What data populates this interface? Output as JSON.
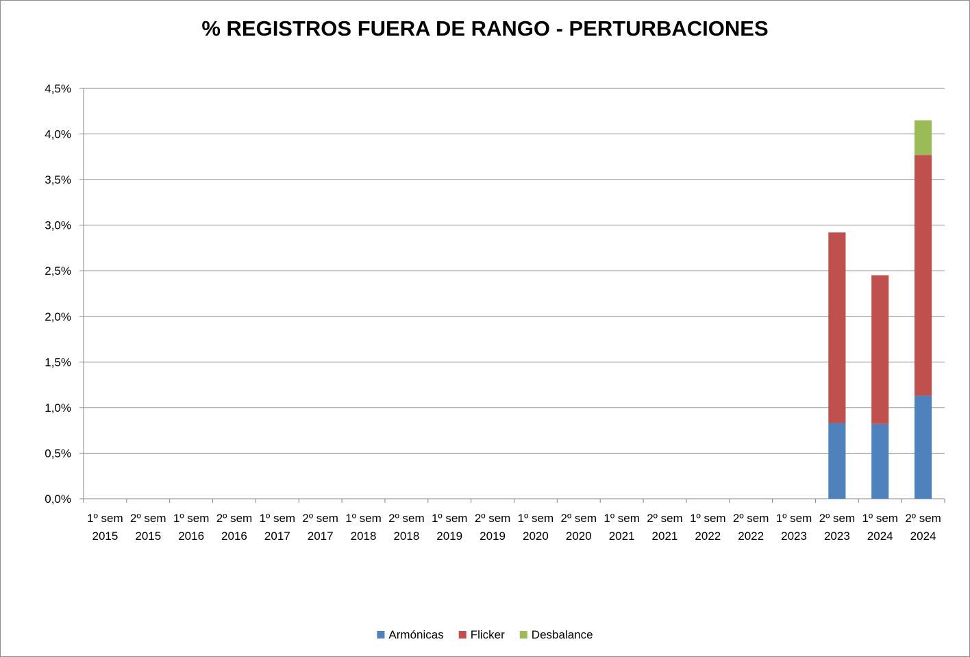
{
  "chart_data": {
    "type": "bar",
    "stacked": true,
    "title": "% REGISTROS FUERA DE RANGO - PERTURBACIONES",
    "xlabel": "",
    "ylabel": "",
    "ylim": [
      0,
      4.5
    ],
    "yticks": [
      "0,0%",
      "0,5%",
      "1,0%",
      "1,5%",
      "2,0%",
      "2,5%",
      "3,0%",
      "3,5%",
      "4,0%",
      "4,5%"
    ],
    "ytick_values": [
      0,
      0.5,
      1.0,
      1.5,
      2.0,
      2.5,
      3.0,
      3.5,
      4.0,
      4.5
    ],
    "grid": true,
    "legend_position": "bottom",
    "categories": [
      [
        "1º sem",
        "2015"
      ],
      [
        "2º sem",
        "2015"
      ],
      [
        "1º sem",
        "2016"
      ],
      [
        "2º sem",
        "2016"
      ],
      [
        "1º sem",
        "2017"
      ],
      [
        "2º sem",
        "2017"
      ],
      [
        "1º sem",
        "2018"
      ],
      [
        "2º sem",
        "2018"
      ],
      [
        "1º sem",
        "2019"
      ],
      [
        "2º sem",
        "2019"
      ],
      [
        "1º sem",
        "2020"
      ],
      [
        "2º sem",
        "2020"
      ],
      [
        "1º sem",
        "2021"
      ],
      [
        "2º sem",
        "2021"
      ],
      [
        "1º sem",
        "2022"
      ],
      [
        "2º sem",
        "2022"
      ],
      [
        "1º sem",
        "2023"
      ],
      [
        "2º sem",
        "2023"
      ],
      [
        "1º sem",
        "2024"
      ],
      [
        "2º sem",
        "2024"
      ]
    ],
    "series": [
      {
        "name": "Armónicas",
        "color": "#4f81bd",
        "values": [
          0,
          0,
          0,
          0,
          0,
          0,
          0,
          0,
          0,
          0,
          0,
          0,
          0,
          0,
          0,
          0,
          0,
          0.83,
          0.82,
          1.13
        ]
      },
      {
        "name": "Flicker",
        "color": "#c0504d",
        "values": [
          0,
          0,
          0,
          0,
          0,
          0,
          0,
          0,
          0,
          0,
          0,
          0,
          0,
          0,
          0,
          0,
          0,
          2.09,
          1.63,
          2.64
        ]
      },
      {
        "name": "Desbalance",
        "color": "#9bbb59",
        "values": [
          0,
          0,
          0,
          0,
          0,
          0,
          0,
          0,
          0,
          0,
          0,
          0,
          0,
          0,
          0,
          0,
          0,
          0,
          0,
          0.38
        ]
      }
    ]
  }
}
